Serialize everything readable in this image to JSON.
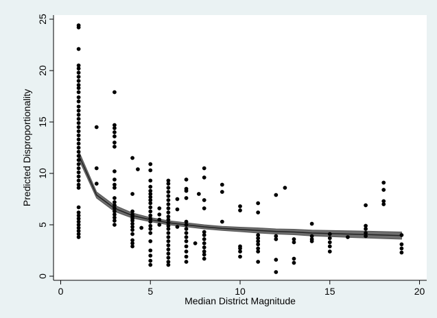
{
  "chart_data": {
    "type": "scatter",
    "title": "",
    "xlabel": "Median District Magnitude",
    "ylabel": "Predicted Disproportionality",
    "xlim": [
      -0.4,
      20.4
    ],
    "ylim": [
      -0.4,
      25.4
    ],
    "xticks": [
      0,
      5,
      10,
      15,
      20
    ],
    "yticks": [
      0,
      5,
      10,
      15,
      20,
      25
    ],
    "grid": false,
    "background_color": "#eaf2f3",
    "plot_background_color": "#ffffff",
    "marker_color": "#000000",
    "band_color": "#6e6e6e",
    "line_color": "#222222",
    "series": [
      {
        "kind": "points",
        "points": [
          [
            1,
            24.4
          ],
          [
            1,
            24.2
          ],
          [
            1,
            22.1
          ],
          [
            1,
            20.5
          ],
          [
            1,
            20.2
          ],
          [
            1,
            19.8
          ],
          [
            1,
            19.4
          ],
          [
            1,
            19.0
          ],
          [
            1,
            18.6
          ],
          [
            1,
            18.3
          ],
          [
            1,
            17.9
          ],
          [
            1,
            17.4
          ],
          [
            1,
            17.0
          ],
          [
            1,
            16.5
          ],
          [
            1,
            16.1
          ],
          [
            1,
            15.7
          ],
          [
            1,
            15.3
          ],
          [
            1,
            14.9
          ],
          [
            1,
            14.5
          ],
          [
            1,
            14.1
          ],
          [
            1,
            13.7
          ],
          [
            1,
            13.3
          ],
          [
            1,
            12.9
          ],
          [
            1,
            12.5
          ],
          [
            1,
            12.1
          ],
          [
            1,
            11.7
          ],
          [
            1,
            11.3
          ],
          [
            1,
            10.9
          ],
          [
            1,
            10.5
          ],
          [
            1,
            10.1
          ],
          [
            1,
            9.7
          ],
          [
            1,
            9.3
          ],
          [
            1,
            8.9
          ],
          [
            1,
            8.6
          ],
          [
            1,
            6.7
          ],
          [
            1,
            6.2
          ],
          [
            1,
            5.9
          ],
          [
            1,
            5.6
          ],
          [
            1,
            5.3
          ],
          [
            1,
            5.0
          ],
          [
            1,
            4.7
          ],
          [
            1,
            4.4
          ],
          [
            1,
            4.1
          ],
          [
            1,
            3.8
          ],
          [
            2,
            14.5
          ],
          [
            2,
            10.5
          ],
          [
            2,
            9.0
          ],
          [
            3,
            17.9
          ],
          [
            3,
            14.7
          ],
          [
            3,
            14.4
          ],
          [
            3,
            14.0
          ],
          [
            3,
            13.6
          ],
          [
            3,
            13.0
          ],
          [
            3,
            12.6
          ],
          [
            3,
            10.2
          ],
          [
            3,
            9.4
          ],
          [
            3,
            8.9
          ],
          [
            3,
            8.6
          ],
          [
            3,
            7.6
          ],
          [
            3,
            7.2
          ],
          [
            3,
            6.9
          ],
          [
            3,
            6.6
          ],
          [
            3,
            6.3
          ],
          [
            3,
            6.0
          ],
          [
            3,
            5.7
          ],
          [
            3,
            5.4
          ],
          [
            3,
            5.0
          ],
          [
            4,
            11.5
          ],
          [
            4,
            8.0
          ],
          [
            4,
            6.3
          ],
          [
            4,
            6.0
          ],
          [
            4,
            5.8
          ],
          [
            4,
            5.6
          ],
          [
            4,
            5.4
          ],
          [
            4,
            5.1
          ],
          [
            4,
            4.8
          ],
          [
            4,
            4.5
          ],
          [
            4,
            4.1
          ],
          [
            4,
            3.5
          ],
          [
            4,
            3.2
          ],
          [
            4,
            2.9
          ],
          [
            4.3,
            10.4
          ],
          [
            4.5,
            4.7
          ],
          [
            5,
            10.9
          ],
          [
            5,
            10.3
          ],
          [
            5,
            9.3
          ],
          [
            5,
            8.7
          ],
          [
            5,
            8.3
          ],
          [
            5,
            8.0
          ],
          [
            5,
            7.7
          ],
          [
            5,
            7.4
          ],
          [
            5,
            7.1
          ],
          [
            5,
            6.7
          ],
          [
            5,
            6.3
          ],
          [
            5,
            5.9
          ],
          [
            5,
            5.6
          ],
          [
            5,
            5.3
          ],
          [
            5,
            4.9
          ],
          [
            5,
            4.6
          ],
          [
            5,
            4.2
          ],
          [
            5,
            3.4
          ],
          [
            5,
            2.5
          ],
          [
            5,
            2.0
          ],
          [
            5,
            1.5
          ],
          [
            5,
            1.1
          ],
          [
            5.5,
            6.6
          ],
          [
            5.5,
            6.0
          ],
          [
            5.5,
            5.5
          ],
          [
            5.5,
            5.0
          ],
          [
            6,
            9.3
          ],
          [
            6,
            9.0
          ],
          [
            6,
            8.6
          ],
          [
            6,
            8.2
          ],
          [
            6,
            7.8
          ],
          [
            6,
            7.4
          ],
          [
            6,
            7.0
          ],
          [
            6,
            6.6
          ],
          [
            6,
            6.2
          ],
          [
            6,
            5.8
          ],
          [
            6,
            5.5
          ],
          [
            6,
            5.2
          ],
          [
            6,
            4.9
          ],
          [
            6,
            4.6
          ],
          [
            6,
            4.2
          ],
          [
            6,
            3.8
          ],
          [
            6,
            3.4
          ],
          [
            6,
            3.0
          ],
          [
            6,
            2.6
          ],
          [
            6,
            2.2
          ],
          [
            6,
            1.8
          ],
          [
            6,
            1.4
          ],
          [
            6,
            1.1
          ],
          [
            6.5,
            7.5
          ],
          [
            6.5,
            6.5
          ],
          [
            6.5,
            4.8
          ],
          [
            7,
            9.4
          ],
          [
            7,
            8.5
          ],
          [
            7,
            8.3
          ],
          [
            7,
            7.6
          ],
          [
            7,
            5.3
          ],
          [
            7,
            5.0
          ],
          [
            7,
            4.6
          ],
          [
            7,
            4.2
          ],
          [
            7,
            3.8
          ],
          [
            7,
            3.4
          ],
          [
            7,
            2.9
          ],
          [
            7,
            2.4
          ],
          [
            7,
            1.9
          ],
          [
            7,
            1.4
          ],
          [
            7.5,
            3.2
          ],
          [
            7.7,
            8.0
          ],
          [
            8,
            10.5
          ],
          [
            8,
            9.6
          ],
          [
            8,
            7.4
          ],
          [
            8,
            6.6
          ],
          [
            8,
            4.3
          ],
          [
            8,
            4.0
          ],
          [
            8,
            3.6
          ],
          [
            8,
            3.2
          ],
          [
            8,
            2.8
          ],
          [
            8,
            2.4
          ],
          [
            8,
            2.1
          ],
          [
            8,
            1.7
          ],
          [
            9,
            8.9
          ],
          [
            9,
            8.2
          ],
          [
            9,
            5.3
          ],
          [
            10,
            6.8
          ],
          [
            10,
            6.4
          ],
          [
            10,
            2.9
          ],
          [
            10,
            2.7
          ],
          [
            10,
            2.4
          ],
          [
            10,
            1.9
          ],
          [
            11,
            7.1
          ],
          [
            11,
            6.2
          ],
          [
            11,
            4.0
          ],
          [
            11,
            3.7
          ],
          [
            11,
            3.4
          ],
          [
            11,
            3.1
          ],
          [
            11,
            2.7
          ],
          [
            11,
            2.4
          ],
          [
            11,
            1.4
          ],
          [
            12,
            7.9
          ],
          [
            12,
            3.9
          ],
          [
            12,
            3.6
          ],
          [
            12,
            1.6
          ],
          [
            12,
            0.4
          ],
          [
            12.5,
            8.6
          ],
          [
            13,
            3.6
          ],
          [
            13,
            3.3
          ],
          [
            13,
            1.7
          ],
          [
            13,
            1.3
          ],
          [
            14,
            5.1
          ],
          [
            14,
            3.9
          ],
          [
            14,
            3.6
          ],
          [
            14,
            3.4
          ],
          [
            15,
            4.1
          ],
          [
            15,
            3.7
          ],
          [
            15,
            3.3
          ],
          [
            15,
            2.9
          ],
          [
            15,
            2.4
          ],
          [
            16,
            3.8
          ],
          [
            17,
            6.9
          ],
          [
            17,
            4.9
          ],
          [
            17,
            4.6
          ],
          [
            17,
            4.2
          ],
          [
            17,
            3.9
          ],
          [
            18,
            9.1
          ],
          [
            18,
            8.4
          ],
          [
            18,
            7.3
          ],
          [
            18,
            7.0
          ],
          [
            19,
            4.0
          ],
          [
            19,
            3.1
          ],
          [
            19,
            2.7
          ],
          [
            19,
            2.3
          ]
        ]
      },
      {
        "kind": "fit",
        "x": [
          1,
          2,
          3,
          4,
          5,
          6,
          7,
          8,
          9,
          10,
          11,
          12,
          13,
          14,
          15,
          16,
          17,
          18,
          19
        ],
        "y": [
          11.8,
          7.9,
          6.6,
          5.9,
          5.5,
          5.2,
          5.0,
          4.8,
          4.65,
          4.55,
          4.45,
          4.35,
          4.3,
          4.2,
          4.15,
          4.1,
          4.05,
          4.0,
          3.95
        ],
        "lower": [
          11.4,
          7.6,
          6.3,
          5.65,
          5.3,
          5.0,
          4.8,
          4.6,
          4.45,
          4.33,
          4.2,
          4.1,
          4.03,
          3.92,
          3.85,
          3.78,
          3.72,
          3.66,
          3.6
        ],
        "upper": [
          12.2,
          8.2,
          6.9,
          6.15,
          5.7,
          5.4,
          5.2,
          5.0,
          4.85,
          4.77,
          4.7,
          4.6,
          4.57,
          4.48,
          4.45,
          4.42,
          4.38,
          4.34,
          4.3
        ]
      }
    ]
  }
}
